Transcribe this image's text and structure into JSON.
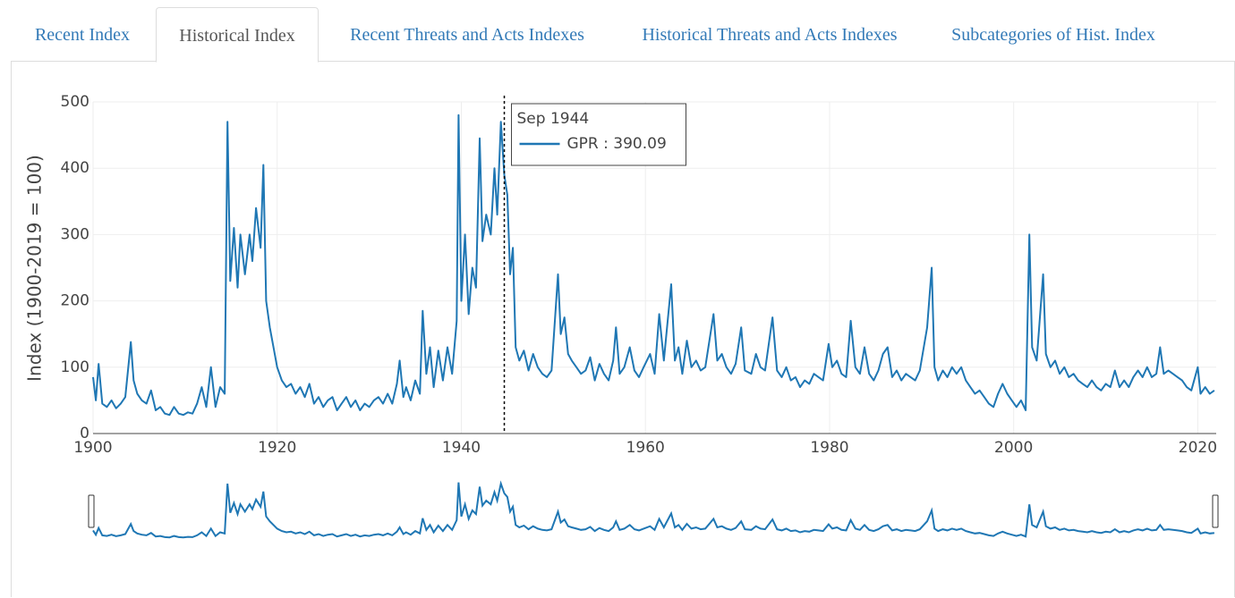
{
  "tabs": [
    "Recent Index",
    "Historical Index",
    "Recent Threats and Acts Indexes",
    "Historical Threats and Acts Indexes",
    "Subcategories of Hist. Index"
  ],
  "chart_data": {
    "type": "line",
    "y_axis_label": "Index (1900-2019 = 100)",
    "xlim": [
      1900,
      2022
    ],
    "xticks": [
      1900,
      1920,
      1940,
      1960,
      1980,
      2000,
      2020
    ],
    "ylim": [
      0,
      500
    ],
    "yticks": [
      0,
      100,
      200,
      300,
      400,
      500
    ],
    "grid": true,
    "tooltip": {
      "date": "Sep 1944",
      "label": "GPR : 390.09",
      "x": 1944.67
    },
    "series": [
      {
        "name": "GPR",
        "color": "#1f77b4",
        "x": [
          1900,
          1900.3,
          1900.6,
          1901,
          1901.5,
          1902,
          1902.5,
          1903,
          1903.5,
          1904.1,
          1904.4,
          1904.8,
          1905.3,
          1905.8,
          1906.3,
          1906.8,
          1907.3,
          1907.8,
          1908.3,
          1908.8,
          1909.3,
          1909.8,
          1910.3,
          1910.8,
          1911.3,
          1911.8,
          1912.3,
          1912.8,
          1913.3,
          1913.8,
          1914.3,
          1914.6,
          1914.9,
          1915.3,
          1915.7,
          1916,
          1916.5,
          1917,
          1917.3,
          1917.7,
          1918.2,
          1918.5,
          1918.8,
          1919.2,
          1919.6,
          1920,
          1920.5,
          1921,
          1921.5,
          1922,
          1922.5,
          1923,
          1923.5,
          1924,
          1924.5,
          1925,
          1925.5,
          1926,
          1926.5,
          1927,
          1927.5,
          1928,
          1928.5,
          1929,
          1929.5,
          1930,
          1930.5,
          1931,
          1931.5,
          1932,
          1932.5,
          1933,
          1933.3,
          1933.7,
          1934,
          1934.5,
          1935,
          1935.5,
          1935.8,
          1936.2,
          1936.6,
          1937,
          1937.5,
          1938,
          1938.5,
          1939,
          1939.5,
          1939.7,
          1940,
          1940.4,
          1940.8,
          1941.2,
          1941.6,
          1942,
          1942.3,
          1942.7,
          1943.2,
          1943.6,
          1943.9,
          1944.3,
          1944.67,
          1945,
          1945.3,
          1945.6,
          1945.9,
          1946.3,
          1946.8,
          1947.3,
          1947.8,
          1948.3,
          1948.8,
          1949.3,
          1949.8,
          1950.5,
          1950.8,
          1951.2,
          1951.6,
          1952,
          1952.5,
          1953,
          1953.5,
          1954,
          1954.5,
          1955,
          1955.5,
          1956,
          1956.5,
          1956.8,
          1957.2,
          1957.7,
          1958.3,
          1958.8,
          1959.3,
          1959.8,
          1960.5,
          1961,
          1961.5,
          1962,
          1962.8,
          1963.2,
          1963.6,
          1964,
          1964.5,
          1965,
          1965.5,
          1966,
          1966.5,
          1967.4,
          1967.8,
          1968.3,
          1968.8,
          1969.3,
          1969.8,
          1970.4,
          1970.8,
          1971.5,
          1972,
          1972.5,
          1973,
          1973.8,
          1974.3,
          1974.8,
          1975.3,
          1975.8,
          1976.3,
          1976.8,
          1977.3,
          1977.8,
          1978.3,
          1978.8,
          1979.3,
          1979.9,
          1980.3,
          1980.8,
          1981.3,
          1981.8,
          1982.3,
          1982.8,
          1983.3,
          1983.8,
          1984.3,
          1984.8,
          1985.3,
          1985.8,
          1986.3,
          1986.8,
          1987.3,
          1987.8,
          1988.3,
          1988.8,
          1989.3,
          1989.8,
          1990.6,
          1991.1,
          1991.4,
          1991.8,
          1992.3,
          1992.8,
          1993.3,
          1993.8,
          1994.3,
          1994.8,
          1995.3,
          1995.8,
          1996.3,
          1996.8,
          1997.3,
          1997.8,
          1998.3,
          1998.8,
          1999.3,
          1999.8,
          2000.3,
          2000.8,
          2001.3,
          2001.7,
          2002,
          2002.5,
          2003.2,
          2003.5,
          2004,
          2004.5,
          2005,
          2005.5,
          2006,
          2006.5,
          2007,
          2007.5,
          2008,
          2008.5,
          2009,
          2009.5,
          2010,
          2010.5,
          2011,
          2011.5,
          2012,
          2012.5,
          2013,
          2013.5,
          2014,
          2014.5,
          2015,
          2015.5,
          2015.9,
          2016.3,
          2016.8,
          2017.3,
          2017.8,
          2018.3,
          2018.8,
          2019.3,
          2020,
          2020.3,
          2020.8,
          2021.3,
          2021.8
        ],
        "values": [
          85,
          50,
          105,
          45,
          40,
          50,
          38,
          45,
          55,
          138,
          80,
          60,
          50,
          45,
          65,
          35,
          40,
          30,
          28,
          40,
          30,
          28,
          32,
          30,
          45,
          70,
          40,
          100,
          40,
          70,
          60,
          470,
          230,
          310,
          220,
          300,
          240,
          300,
          260,
          340,
          280,
          405,
          200,
          160,
          130,
          100,
          80,
          70,
          75,
          60,
          70,
          55,
          75,
          45,
          55,
          40,
          50,
          55,
          35,
          45,
          55,
          40,
          50,
          35,
          45,
          40,
          50,
          55,
          45,
          60,
          45,
          75,
          110,
          55,
          70,
          50,
          80,
          60,
          185,
          90,
          130,
          70,
          125,
          80,
          130,
          90,
          170,
          480,
          200,
          300,
          180,
          250,
          220,
          445,
          290,
          330,
          300,
          400,
          330,
          470,
          390.09,
          360,
          240,
          280,
          130,
          110,
          125,
          95,
          120,
          100,
          90,
          85,
          95,
          240,
          150,
          175,
          120,
          110,
          100,
          90,
          95,
          115,
          80,
          105,
          90,
          80,
          110,
          160,
          90,
          100,
          130,
          95,
          85,
          100,
          120,
          90,
          180,
          110,
          225,
          110,
          130,
          90,
          140,
          100,
          110,
          95,
          100,
          180,
          110,
          120,
          100,
          90,
          105,
          160,
          95,
          90,
          120,
          100,
          95,
          175,
          95,
          85,
          100,
          80,
          85,
          70,
          80,
          75,
          90,
          85,
          80,
          135,
          100,
          110,
          90,
          85,
          170,
          100,
          90,
          130,
          90,
          80,
          95,
          120,
          130,
          85,
          95,
          80,
          90,
          85,
          80,
          95,
          160,
          250,
          100,
          80,
          95,
          85,
          100,
          90,
          100,
          80,
          70,
          60,
          65,
          55,
          45,
          40,
          60,
          75,
          60,
          50,
          40,
          50,
          35,
          300,
          130,
          110,
          240,
          120,
          100,
          110,
          90,
          100,
          85,
          90,
          80,
          75,
          70,
          80,
          70,
          65,
          75,
          70,
          95,
          70,
          80,
          70,
          85,
          95,
          85,
          100,
          85,
          90,
          130,
          90,
          95,
          90,
          85,
          80,
          70,
          65,
          100,
          60,
          70,
          60,
          65
        ]
      }
    ]
  }
}
